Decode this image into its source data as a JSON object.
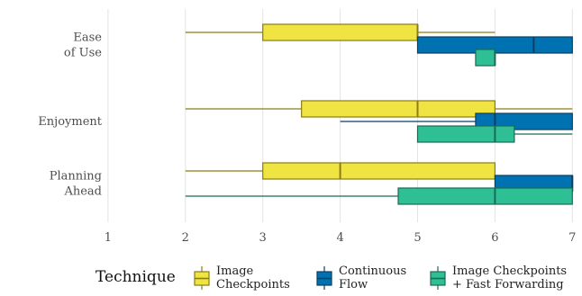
{
  "chart_data": {
    "type": "box",
    "orientation": "horizontal",
    "title": "",
    "xlabel": "",
    "ylabel": "",
    "xlim": [
      0.5,
      7
    ],
    "x_ticks": [
      1,
      2,
      3,
      4,
      5,
      6,
      7
    ],
    "grid": "vertical",
    "categories": [
      "Ease\nof Use",
      "Enjoyment",
      "Planning\nAhead"
    ],
    "legend": {
      "title": "Technique",
      "placement": "bottom",
      "entries": [
        {
          "label": "Image\nCheckpoints",
          "color": "#f0e442"
        },
        {
          "label": "Continuous\nFlow",
          "color": "#0072b2"
        },
        {
          "label": "Image Checkpoints\n+ Fast Forwarding",
          "color": "#2fbf94"
        }
      ]
    },
    "series": [
      {
        "name": "Image Checkpoints",
        "fill": "#f0e442",
        "stroke": "#8a7d14",
        "boxes": [
          {
            "category": "Ease\nof Use",
            "min": 2,
            "q1": 3,
            "median": 5,
            "q3": 5,
            "max": 6
          },
          {
            "category": "Enjoyment",
            "min": 2,
            "q1": 3.5,
            "median": 5,
            "q3": 6,
            "max": 7
          },
          {
            "category": "Planning\nAhead",
            "min": 2,
            "q1": 3,
            "median": 4,
            "q3": 6,
            "max": 6
          }
        ]
      },
      {
        "name": "Continuous Flow",
        "fill": "#0072b2",
        "stroke": "#0a3f63",
        "boxes": [
          {
            "category": "Ease\nof Use",
            "min": 5,
            "q1": 5,
            "median": 6.5,
            "q3": 7,
            "max": 7
          },
          {
            "category": "Enjoyment",
            "min": 4,
            "q1": 5.75,
            "median": 6,
            "q3": 7,
            "max": 7
          },
          {
            "category": "Planning\nAhead",
            "min": 6,
            "q1": 6,
            "median": 7,
            "q3": 7,
            "max": 7
          }
        ]
      },
      {
        "name": "Image Checkpoints + Fast Forwarding",
        "fill": "#2fbf94",
        "stroke": "#1a6b56",
        "boxes": [
          {
            "category": "Ease\nof Use",
            "min": 5.75,
            "q1": 5.75,
            "median": 6,
            "q3": 6,
            "max": 6
          },
          {
            "category": "Enjoyment",
            "min": 5,
            "q1": 5,
            "median": 6,
            "q3": 6.25,
            "max": 7
          },
          {
            "category": "Planning\nAhead",
            "min": 2,
            "q1": 4.75,
            "median": 6,
            "q3": 7,
            "max": 7
          }
        ]
      }
    ]
  }
}
